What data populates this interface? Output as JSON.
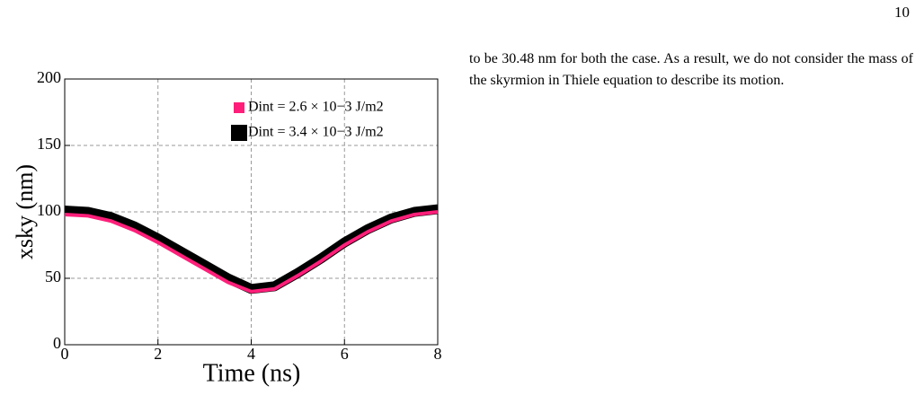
{
  "page_number": "10",
  "paragraph": "to be 30.48 nm for both the case. As a result, we do not consider the mass of the skyrmion in Thiele equation to describe its motion.",
  "chart_data": {
    "type": "line",
    "x_label": "Time (ns)",
    "y_label": "xsky (nm)",
    "x": [
      0,
      0.5,
      1,
      1.5,
      2,
      2.5,
      3,
      3.5,
      4,
      4.5,
      5,
      5.5,
      6,
      6.5,
      7,
      7.5,
      8
    ],
    "series": [
      {
        "name": "Dint = 3.4 × 10−3 J/m2",
        "color": "#000000",
        "values": [
          101,
          100,
          96,
          89,
          80,
          70,
          60,
          50,
          42,
          44,
          54,
          65,
          77,
          87,
          95,
          100,
          102
        ]
      },
      {
        "name": "Dint = 2.6 × 10−3 J/m2",
        "color": "#ff1f7a",
        "values": [
          98,
          97,
          93,
          86,
          77,
          67,
          57,
          47,
          40,
          42,
          52,
          63,
          75,
          85,
          93,
          98,
          100
        ]
      }
    ],
    "xlim": [
      0,
      8
    ],
    "ylim": [
      0,
      200
    ],
    "xticks": [
      0,
      2,
      4,
      6,
      8
    ],
    "yticks": [
      0,
      50,
      100,
      150,
      200
    ],
    "grid": true,
    "legend": "upper right"
  }
}
